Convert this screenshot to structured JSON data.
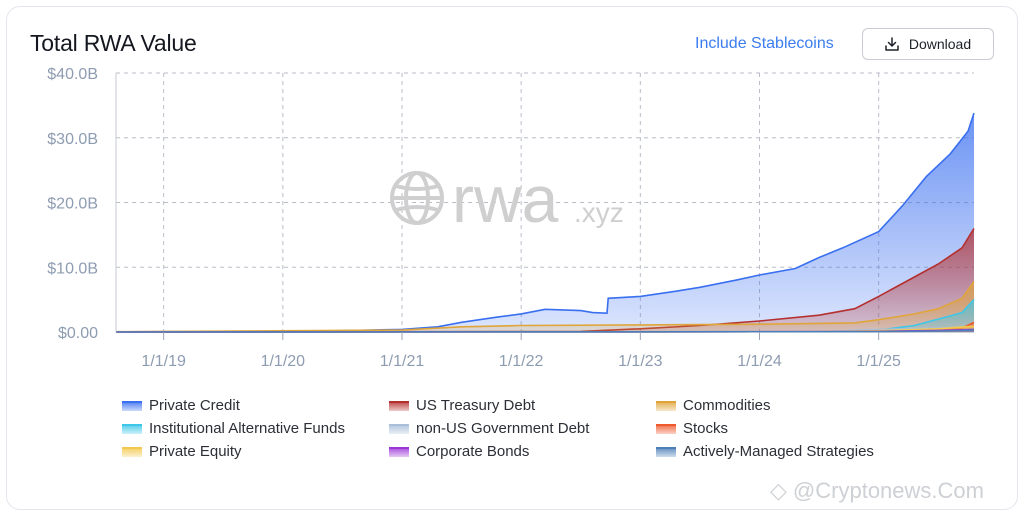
{
  "header": {
    "title": "Total RWA Value",
    "stablecoins_label": "Include Stablecoins",
    "download_label": "Download"
  },
  "watermark": {
    "brand": "rwa",
    "suffix": ".xyz",
    "credit": "@Cryptonews.Com"
  },
  "colors": {
    "private_credit": "#3a6ff0",
    "us_treasury": "#b4302f",
    "commodities": "#e0a53a",
    "institutional": "#3cc7e8",
    "non_us_gov": "#a9bfd9",
    "stocks": "#ef5a2d",
    "private_equity": "#f2c94c",
    "corporate_bonds": "#9b37d6",
    "actively_managed": "#4c7fb8"
  },
  "chart_data": {
    "type": "area",
    "stacked": false,
    "y_ticks": [
      "$0.00",
      "$10.0B",
      "$20.0B",
      "$30.0B",
      "$40.0B"
    ],
    "ylim": [
      0,
      40
    ],
    "x_ticks": [
      "1/1/19",
      "1/1/20",
      "1/1/21",
      "1/1/22",
      "1/1/23",
      "1/1/24",
      "1/1/25"
    ],
    "x_tick_values": [
      2019,
      2020,
      2021,
      2022,
      2023,
      2024,
      2025
    ],
    "xlim": [
      2018.6,
      2025.8
    ],
    "grid": true,
    "legend_position": "bottom",
    "series": [
      {
        "name": "Private Credit",
        "color_key": "private_credit",
        "x": [
          2018.6,
          2019.0,
          2020.0,
          2020.5,
          2021.0,
          2021.3,
          2021.5,
          2021.8,
          2022.0,
          2022.2,
          2022.5,
          2022.6,
          2022.72,
          2022.73,
          2023.0,
          2023.3,
          2023.5,
          2023.8,
          2024.0,
          2024.3,
          2024.5,
          2024.7,
          2025.0,
          2025.2,
          2025.4,
          2025.6,
          2025.75,
          2025.8
        ],
        "values": [
          0.02,
          0.05,
          0.1,
          0.2,
          0.4,
          0.8,
          1.5,
          2.3,
          2.8,
          3.5,
          3.3,
          3.0,
          2.9,
          5.2,
          5.5,
          6.3,
          6.9,
          8.0,
          8.8,
          9.8,
          11.5,
          13.0,
          15.5,
          19.5,
          24.0,
          27.5,
          31.0,
          33.8
        ]
      },
      {
        "name": "US Treasury Debt",
        "color_key": "us_treasury",
        "x": [
          2018.6,
          2021.0,
          2022.5,
          2023.0,
          2023.5,
          2024.0,
          2024.5,
          2024.8,
          2025.0,
          2025.3,
          2025.5,
          2025.7,
          2025.8
        ],
        "values": [
          0.0,
          0.05,
          0.1,
          0.5,
          1.0,
          1.7,
          2.6,
          3.6,
          5.5,
          8.5,
          10.5,
          13.0,
          16.0
        ]
      },
      {
        "name": "Commodities",
        "color_key": "commodities",
        "x": [
          2018.6,
          2021.0,
          2021.5,
          2022.0,
          2023.0,
          2024.0,
          2024.8,
          2025.0,
          2025.3,
          2025.5,
          2025.7,
          2025.8
        ],
        "values": [
          0.05,
          0.3,
          0.8,
          1.0,
          1.1,
          1.2,
          1.4,
          1.9,
          2.8,
          3.6,
          5.2,
          7.8
        ]
      },
      {
        "name": "Institutional Alternative Funds",
        "color_key": "institutional",
        "x": [
          2018.6,
          2024.5,
          2025.0,
          2025.3,
          2025.5,
          2025.7,
          2025.8
        ],
        "values": [
          0.0,
          0.05,
          0.3,
          1.0,
          2.0,
          3.0,
          5.0
        ]
      },
      {
        "name": "non-US Government Debt",
        "color_key": "non_us_gov",
        "x": [
          2018.6,
          2024.5,
          2025.0,
          2025.5,
          2025.8
        ],
        "values": [
          0.0,
          0.05,
          0.4,
          0.6,
          0.8
        ]
      },
      {
        "name": "Stocks",
        "color_key": "stocks",
        "x": [
          2018.6,
          2025.0,
          2025.5,
          2025.7,
          2025.8
        ],
        "values": [
          0.0,
          0.05,
          0.2,
          0.6,
          1.5
        ]
      },
      {
        "name": "Private Equity",
        "color_key": "private_equity",
        "x": [
          2018.6,
          2024.5,
          2025.0,
          2025.5,
          2025.8
        ],
        "values": [
          0.0,
          0.05,
          0.2,
          0.5,
          0.9
        ]
      },
      {
        "name": "Corporate Bonds",
        "color_key": "corporate_bonds",
        "x": [
          2018.6,
          2024.5,
          2025.0,
          2025.5,
          2025.8
        ],
        "values": [
          0.0,
          0.05,
          0.1,
          0.25,
          0.4
        ]
      },
      {
        "name": "Actively-Managed Strategies",
        "color_key": "actively_managed",
        "x": [
          2018.6,
          2025.0,
          2025.5,
          2025.8
        ],
        "values": [
          0.0,
          0.05,
          0.15,
          0.3
        ]
      }
    ]
  }
}
